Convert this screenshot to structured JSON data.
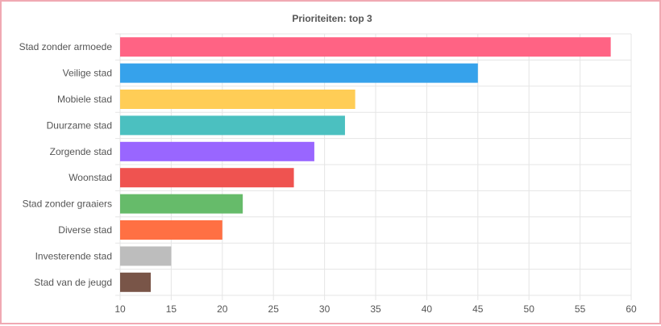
{
  "chart_data": {
    "type": "bar",
    "orientation": "horizontal",
    "title": "Prioriteiten: top 3",
    "categories": [
      "Stad zonder armoede",
      "Veilige stad",
      "Mobiele stad",
      "Duurzame stad",
      "Zorgende stad",
      "Woonstad",
      "Stad zonder graaiers",
      "Diverse stad",
      "Investerende stad",
      "Stad van de jeugd"
    ],
    "values": [
      58,
      45,
      33,
      32,
      29,
      27,
      22,
      20,
      15,
      13
    ],
    "colors": [
      "#ff6384",
      "#36a2eb",
      "#ffcd56",
      "#4bc0c0",
      "#9966ff",
      "#ef5350",
      "#66bb6a",
      "#ff7043",
      "#bdbdbd",
      "#795548"
    ],
    "xlim": [
      10,
      60
    ],
    "xticks": [
      "10",
      "15",
      "20",
      "25",
      "30",
      "35",
      "40",
      "45",
      "50",
      "55",
      "60"
    ],
    "xlabel": "",
    "ylabel": "",
    "grid": true,
    "legend": "none"
  }
}
